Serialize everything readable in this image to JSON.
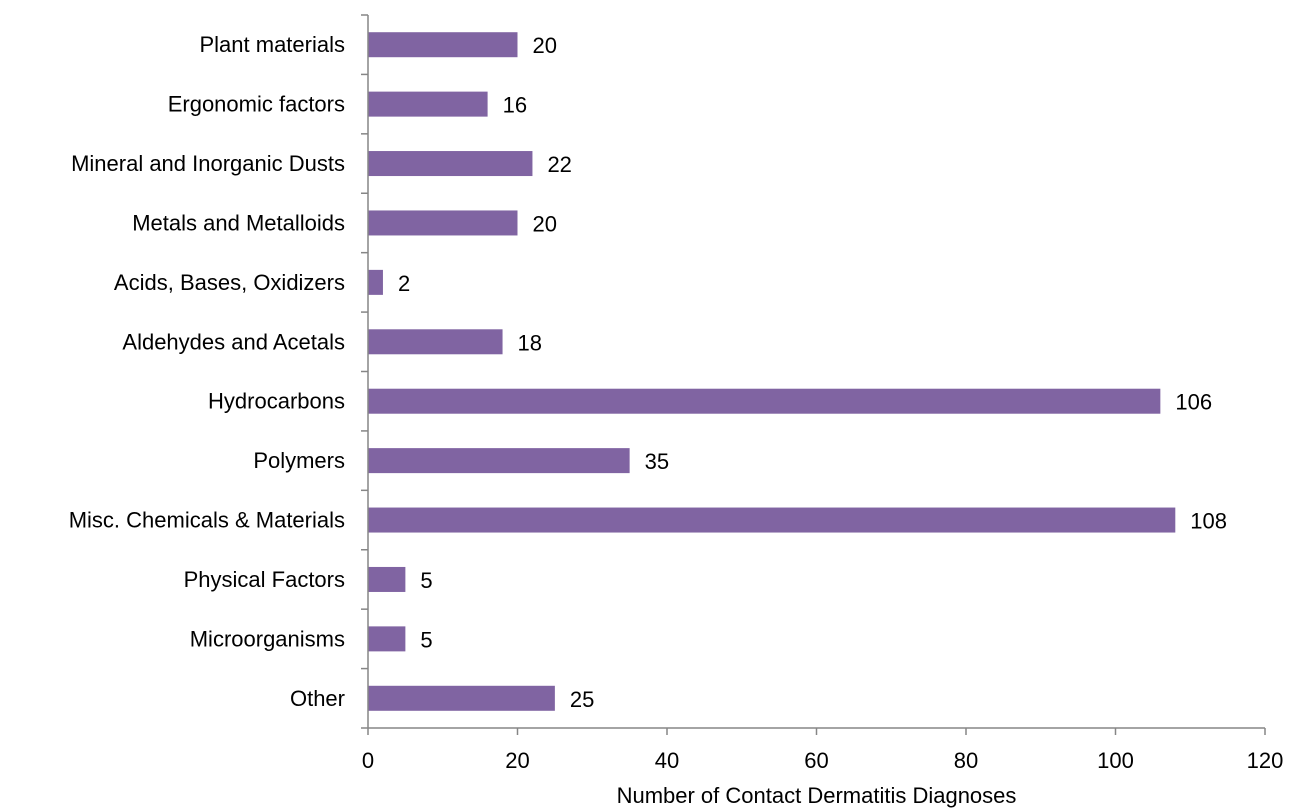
{
  "chart_data": {
    "type": "bar",
    "orientation": "horizontal",
    "categories": [
      "Plant materials",
      "Ergonomic factors",
      "Mineral and Inorganic Dusts",
      "Metals and Metalloids",
      "Acids, Bases, Oxidizers",
      "Aldehydes and Acetals",
      "Hydrocarbons",
      "Polymers",
      "Misc. Chemicals & Materials",
      "Physical Factors",
      "Microorganisms",
      "Other"
    ],
    "values": [
      20,
      16,
      22,
      20,
      2,
      18,
      106,
      35,
      108,
      5,
      5,
      25
    ],
    "data_labels": [
      "20",
      "16",
      "22",
      "20",
      "2",
      "18",
      "106",
      "35",
      "108",
      "5",
      "5",
      "25"
    ],
    "xlabel": "Number of Contact Dermatitis Diagnoses",
    "xlim": [
      0,
      120
    ],
    "x_ticks": [
      0,
      20,
      40,
      60,
      80,
      100,
      120
    ],
    "x_tick_labels": [
      "0",
      "20",
      "40",
      "60",
      "80",
      "100",
      "120"
    ],
    "grid": false,
    "legend": "none",
    "bar_color": "#8064A2"
  }
}
